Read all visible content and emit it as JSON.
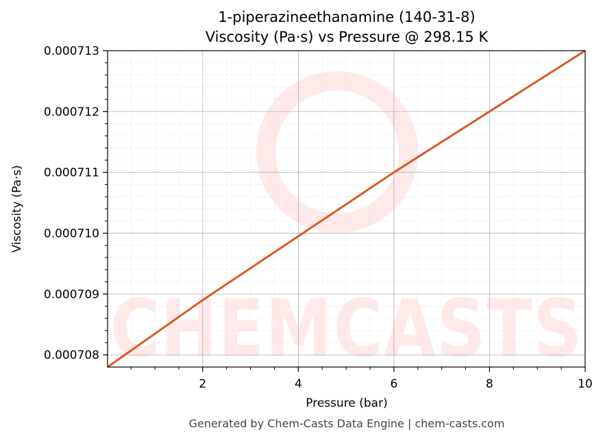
{
  "title_line1": "1-piperazineethanamine (140-31-8)",
  "title_line2": "Viscosity (Pa·s) vs Pressure @ 298.15 K",
  "watermark": "CHEMCASTS",
  "footer": "Generated by Chem-Casts Data Engine | chem-casts.com",
  "colors": {
    "line": "#d95a26",
    "grid_major": "#b0b0b0",
    "grid_minor": "#e2e2e2",
    "watermark": "#ffe9e9"
  },
  "chart_data": {
    "type": "line",
    "xlabel": "Pressure (bar)",
    "ylabel": "Viscosity (Pa·s)",
    "xlim": [
      0.01,
      10
    ],
    "ylim": [
      0.0007078,
      0.000713
    ],
    "x_ticks": [
      2,
      4,
      6,
      8,
      10
    ],
    "x_tick_labels": [
      "2",
      "4",
      "6",
      "8",
      "10"
    ],
    "y_ticks": [
      0.000708,
      0.000709,
      0.00071,
      0.000711,
      0.000712,
      0.000713
    ],
    "y_tick_labels": [
      "0.000708",
      "0.000709",
      "0.000710",
      "0.000711",
      "0.000712",
      "0.000713"
    ],
    "grid": true,
    "series": [
      {
        "x": [
          0.01,
          2,
          4,
          6,
          8,
          10
        ],
        "y": [
          0.0007078,
          0.0007089,
          0.00070995,
          0.000711,
          0.000712,
          0.000713
        ]
      }
    ]
  }
}
